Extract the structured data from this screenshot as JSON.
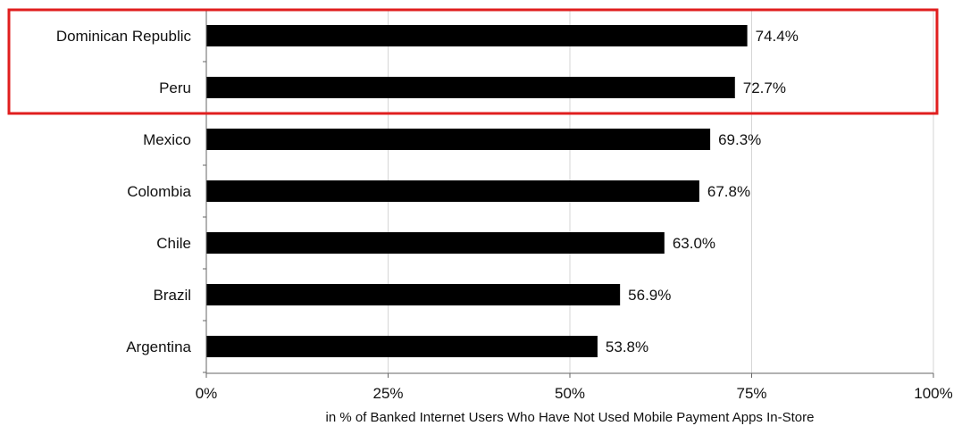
{
  "chart_data": {
    "type": "bar",
    "orientation": "horizontal",
    "categories": [
      "Dominican Republic",
      "Peru",
      "Mexico",
      "Colombia",
      "Chile",
      "Brazil",
      "Argentina"
    ],
    "values": [
      74.4,
      72.7,
      69.3,
      67.8,
      63.0,
      56.9,
      53.8
    ],
    "value_labels": [
      "74.4%",
      "72.7%",
      "69.3%",
      "67.8%",
      "63.0%",
      "56.9%",
      "53.8%"
    ],
    "xticks": [
      0,
      25,
      50,
      75,
      100
    ],
    "xtick_labels": [
      "0%",
      "25%",
      "50%",
      "75%",
      "100%"
    ],
    "xlim": [
      0,
      100
    ],
    "xlabel": "in % of Banked Internet Users Who Have Not Used Mobile Payment Apps In-Store",
    "ylabel": "",
    "title": "",
    "grid": "vertical",
    "highlight": {
      "categories": [
        "Dominican Republic",
        "Peru"
      ],
      "color": "#e01e1e"
    },
    "colors": {
      "bar": "#000000",
      "grid": "#d6d6d6",
      "axis": "#666666"
    }
  }
}
